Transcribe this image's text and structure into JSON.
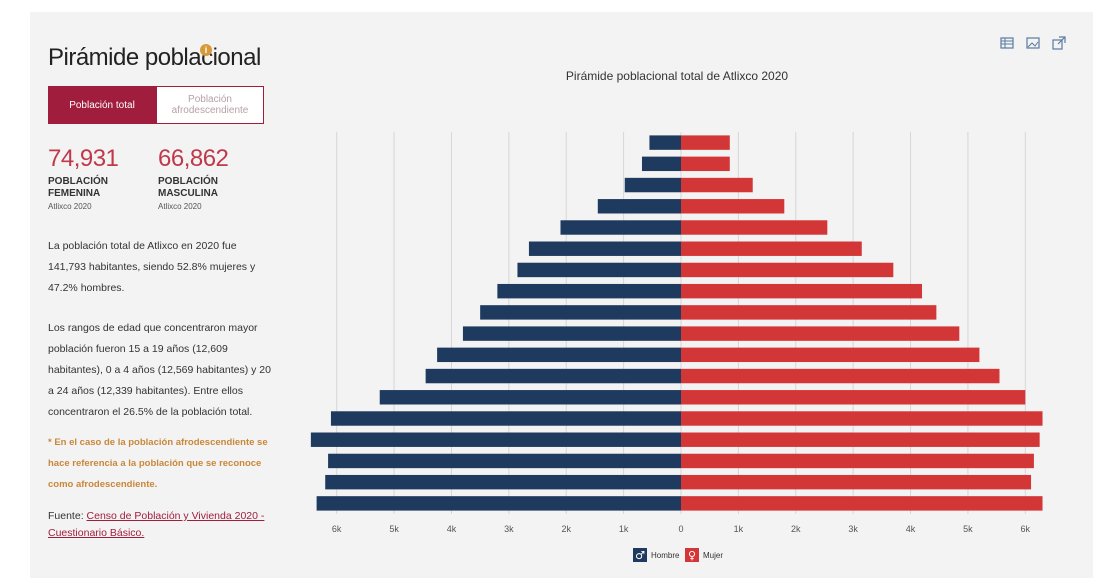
{
  "page": {
    "title": "Pirámide poblacional",
    "info_icon": "info-icon"
  },
  "tabs": [
    {
      "label": "Población total",
      "active": true
    },
    {
      "label": "Población afrodescendiente",
      "active": false
    }
  ],
  "stats": [
    {
      "value": "74,931",
      "label": "POBLACIÓN FEMENINA",
      "sub": "Atlixco 2020"
    },
    {
      "value": "66,862",
      "label": "POBLACIÓN MASCULINA",
      "sub": "Atlixco 2020"
    }
  ],
  "text": {
    "p1": "La población total de Atlixco en 2020 fue 141,793 habitantes, siendo 52.8% mujeres y 47.2% hombres.",
    "p2": "Los rangos de edad que concentraron mayor población fueron 15 a 19 años (12,609 habitantes), 0 a 4 años (12,569 habitantes) y 20 a 24 años (12,339 habitantes). Entre ellos concentraron el 26.5% de la población total.",
    "note": "* En el caso de la población afrodescendiente se hace referencia a la población que se reconoce como afrodescendiente.",
    "source_prefix": "Fuente: ",
    "source_link": "Censo de Población y Vivienda 2020 - Cuestionario Básico."
  },
  "toolbar": {
    "icons": [
      "table-icon",
      "image-icon",
      "external-link-icon"
    ]
  },
  "colors": {
    "male": "#1f3a5f",
    "female": "#d33636",
    "accent": "#a11d3e"
  },
  "chart_data": {
    "type": "bar",
    "orientation": "horizontal-pyramid",
    "title": "Pirámide poblacional total de Atlixco 2020",
    "series": [
      {
        "name": "Hombre",
        "values": [
          550,
          680,
          980,
          1450,
          2100,
          2650,
          2850,
          3200,
          3500,
          3800,
          4250,
          4450,
          5250,
          6100,
          6450,
          6150,
          6200,
          6350
        ]
      },
      {
        "name": "Mujer",
        "values": [
          850,
          850,
          1250,
          1800,
          2550,
          3150,
          3700,
          4200,
          4450,
          4850,
          5200,
          5550,
          6000,
          6300,
          6250,
          6150,
          6100,
          6300
        ]
      }
    ],
    "x_ticks": [
      "6k",
      "5k",
      "4k",
      "3k",
      "2k",
      "1k",
      "0",
      "1k",
      "2k",
      "3k",
      "4k",
      "5k",
      "6k"
    ],
    "xlim": [
      -6500,
      6500
    ],
    "legend": [
      "Hombre",
      "Mujer"
    ],
    "legend_position": "bottom",
    "grid": true
  }
}
